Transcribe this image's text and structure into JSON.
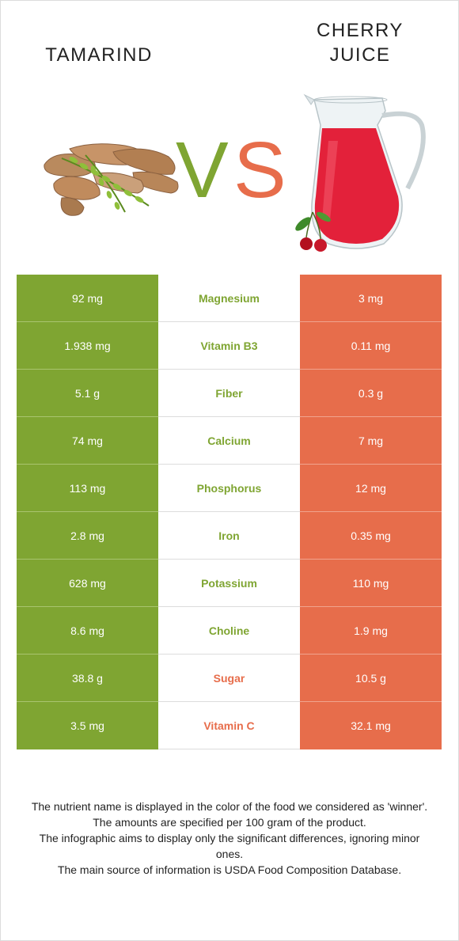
{
  "header": {
    "left_food": "TAMARIND",
    "right_food_line1": "CHERRY",
    "right_food_line2": "JUICE",
    "vs_v": "V",
    "vs_s": "S"
  },
  "colors": {
    "left_winner": "#7fa532",
    "right_winner": "#e76d4b"
  },
  "rows": [
    {
      "nutrient": "Magnesium",
      "left": "92 mg",
      "right": "3 mg",
      "winner": "left"
    },
    {
      "nutrient": "Vitamin B3",
      "left": "1.938 mg",
      "right": "0.11 mg",
      "winner": "left"
    },
    {
      "nutrient": "Fiber",
      "left": "5.1 g",
      "right": "0.3 g",
      "winner": "left"
    },
    {
      "nutrient": "Calcium",
      "left": "74 mg",
      "right": "7 mg",
      "winner": "left"
    },
    {
      "nutrient": "Phosphorus",
      "left": "113 mg",
      "right": "12 mg",
      "winner": "left"
    },
    {
      "nutrient": "Iron",
      "left": "2.8 mg",
      "right": "0.35 mg",
      "winner": "left"
    },
    {
      "nutrient": "Potassium",
      "left": "628 mg",
      "right": "110 mg",
      "winner": "left"
    },
    {
      "nutrient": "Choline",
      "left": "8.6 mg",
      "right": "1.9 mg",
      "winner": "left"
    },
    {
      "nutrient": "Sugar",
      "left": "38.8 g",
      "right": "10.5 g",
      "winner": "right"
    },
    {
      "nutrient": "Vitamin C",
      "left": "3.5 mg",
      "right": "32.1 mg",
      "winner": "right"
    }
  ],
  "footnote": [
    "The nutrient name is displayed in the color of the food we considered as 'winner'.",
    "The amounts are specified per 100 gram of the product.",
    "The infographic aims to display only the significant differences, ignoring minor ones.",
    "The main source of information is USDA Food Composition Database."
  ]
}
